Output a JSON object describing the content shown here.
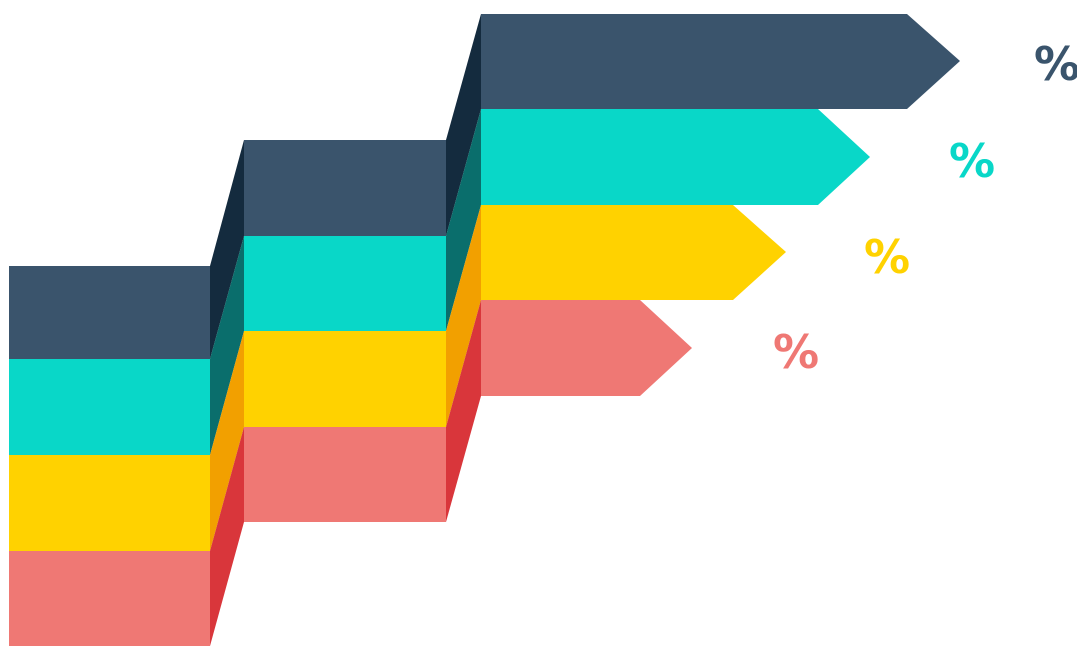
{
  "colors": {
    "background": "#ffffff",
    "navy": "#3a546c",
    "navy_side": "#142b3e",
    "teal": "#09d7c8",
    "teal_side": "#0a6e6c",
    "yellow": "#ffd200",
    "yellow_side": "#f2a000",
    "coral": "#ef7874",
    "coral_side": "#d9363b"
  },
  "bands": [
    {
      "key": "navy",
      "label": "%"
    },
    {
      "key": "teal",
      "label": "%"
    },
    {
      "key": "yellow",
      "label": "%"
    },
    {
      "key": "coral",
      "label": "%"
    }
  ]
}
